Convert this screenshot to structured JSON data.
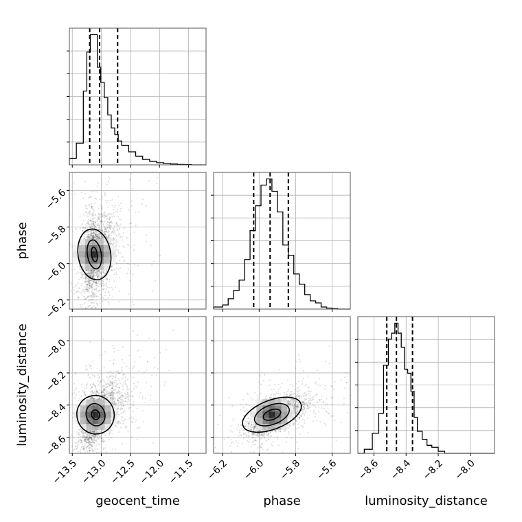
{
  "chart_data": {
    "type": "corner",
    "parameters": [
      "geocent_time",
      "phase",
      "luminosity_distance"
    ],
    "axis_labels": {
      "x": [
        "geocent_time",
        "phase",
        "luminosity_distance"
      ],
      "y": [
        "",
        "phase",
        "luminosity_distance"
      ]
    },
    "ranges": {
      "geocent_time": [
        -13.55,
        -11.2
      ],
      "phase": [
        -6.25,
        -5.5
      ],
      "luminosity_distance": [
        -8.7,
        -7.85
      ]
    },
    "ticks": {
      "geocent_time": [
        -13.5,
        -13.0,
        -12.5,
        -12.0,
        -11.5
      ],
      "phase": [
        -6.2,
        -6.0,
        -5.8,
        -5.6
      ],
      "luminosity_distance": [
        -8.6,
        -8.4,
        -8.2,
        -8.0
      ]
    },
    "tick_labels": {
      "geocent_time": [
        "−13.5",
        "−13.0",
        "−12.5",
        "−12.0",
        "−11.5"
      ],
      "phase": [
        "−6.2",
        "−6.0",
        "−5.8",
        "−5.6"
      ],
      "luminosity_distance": [
        "−8.6",
        "−8.4",
        "−8.2",
        "−8.0"
      ]
    },
    "quantiles": {
      "geocent_time": [
        -13.2,
        -13.03,
        -12.72
      ],
      "phase": [
        -6.03,
        -5.94,
        -5.84
      ],
      "luminosity_distance": [
        -8.52,
        -8.46,
        -8.36
      ]
    },
    "histograms": {
      "geocent_time": {
        "edges": [
          -13.55,
          -13.43,
          -13.31,
          -13.25,
          -13.19,
          -13.13,
          -13.07,
          -13.01,
          -12.95,
          -12.89,
          -12.83,
          -12.77,
          -12.71,
          -12.65,
          -12.53,
          -12.41,
          -12.29,
          -12.17,
          -12.05,
          -11.93,
          -11.81,
          -11.69,
          -11.57,
          -11.45,
          -11.2
        ],
        "counts": [
          3,
          10,
          34,
          52,
          60,
          60,
          45,
          38,
          31,
          23,
          17,
          14,
          11,
          9,
          6,
          4,
          2.5,
          1.6,
          1.0,
          0.6,
          0.4,
          0.2,
          0.1,
          0
        ]
      },
      "phase": {
        "edges": [
          -6.25,
          -6.2,
          -6.17,
          -6.14,
          -6.11,
          -6.08,
          -6.05,
          -6.02,
          -5.99,
          -5.96,
          -5.93,
          -5.9,
          -5.87,
          -5.84,
          -5.81,
          -5.78,
          -5.75,
          -5.72,
          -5.69,
          -5.66,
          -5.63,
          -5.6,
          -5.57,
          -5.5
        ],
        "counts": [
          1,
          2,
          5,
          9,
          14,
          24,
          38,
          50,
          60,
          63,
          57,
          47,
          31,
          26,
          17,
          12,
          7,
          4,
          3,
          1,
          0.5,
          0.2,
          0
        ]
      },
      "luminosity_distance": {
        "edges": [
          -8.7,
          -8.66,
          -8.61,
          -8.57,
          -8.54,
          -8.51,
          -8.49,
          -8.47,
          -8.45,
          -8.43,
          -8.41,
          -8.39,
          -8.37,
          -8.35,
          -8.33,
          -8.3,
          -8.27,
          -8.24,
          -8.2,
          -8.16,
          -7.85
        ],
        "counts": [
          0,
          2,
          10,
          20,
          44,
          57,
          60,
          65,
          60,
          53,
          42,
          40,
          31,
          18,
          11,
          7,
          4,
          3,
          1,
          0
        ]
      }
    },
    "pairs": [
      {
        "x": "geocent_time",
        "y": "phase",
        "center": [
          -13.12,
          -5.95
        ],
        "sigma": [
          0.18,
          0.11
        ],
        "rho": 0.25,
        "contours": [
          [
            0.05,
            0.04
          ],
          [
            0.12,
            0.08
          ],
          [
            0.28,
            0.14
          ]
        ]
      },
      {
        "x": "geocent_time",
        "y": "luminosity_distance",
        "center": [
          -13.1,
          -8.46
        ],
        "sigma": [
          0.22,
          0.09
        ],
        "rho": 0.5,
        "contours": [
          [
            0.07,
            0.03
          ],
          [
            0.16,
            0.07
          ],
          [
            0.32,
            0.12
          ]
        ]
      },
      {
        "x": "phase",
        "y": "luminosity_distance",
        "center": [
          -5.93,
          -8.46
        ],
        "sigma": [
          0.1,
          0.06
        ],
        "rho": 0.6,
        "contours": [
          [
            0.05,
            0.03
          ],
          [
            0.1,
            0.06
          ],
          [
            0.17,
            0.09
          ]
        ]
      }
    ],
    "grid": true,
    "legend": "none"
  }
}
